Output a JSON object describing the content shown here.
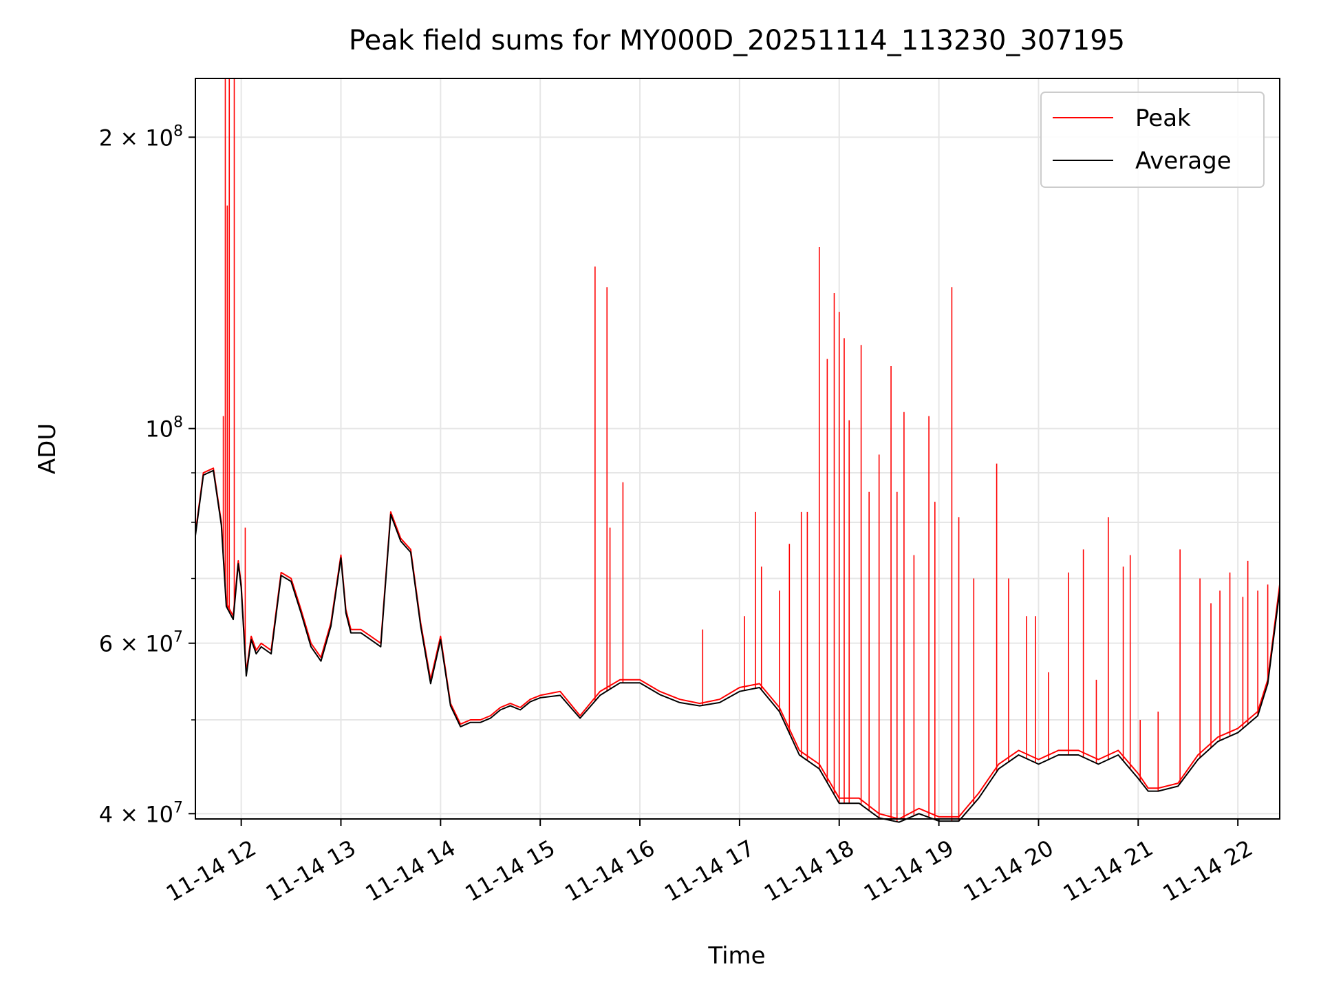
{
  "chart_data": {
    "type": "line",
    "title": "Peak field sums for MY000D_20251114_113230_307195",
    "xlabel": "Time",
    "ylabel": "ADU",
    "yscale": "log",
    "xlim": [
      11.54,
      22.42
    ],
    "ylim": [
      39500000,
      230000000
    ],
    "grid": true,
    "legend_position": "top-right",
    "x_ticks": [
      {
        "value": 12,
        "label": "11-14 12"
      },
      {
        "value": 13,
        "label": "11-14 13"
      },
      {
        "value": 14,
        "label": "11-14 14"
      },
      {
        "value": 15,
        "label": "11-14 15"
      },
      {
        "value": 16,
        "label": "11-14 16"
      },
      {
        "value": 17,
        "label": "11-14 17"
      },
      {
        "value": 18,
        "label": "11-14 18"
      },
      {
        "value": 19,
        "label": "11-14 19"
      },
      {
        "value": 20,
        "label": "11-14 20"
      },
      {
        "value": 21,
        "label": "11-14 21"
      },
      {
        "value": 22,
        "label": "11-14 22"
      }
    ],
    "y_ticks": [
      {
        "value": 40000000,
        "base": "4 × 10",
        "exp": "7"
      },
      {
        "value": 60000000,
        "base": "6 × 10",
        "exp": "7"
      },
      {
        "value": 100000000,
        "base": "10",
        "exp": "8"
      },
      {
        "value": 200000000,
        "base": "2 × 10",
        "exp": "8"
      }
    ],
    "y_minor_ticks": [
      50000000,
      70000000,
      80000000,
      90000000
    ],
    "series": [
      {
        "name": "Peak",
        "color": "#ff0000",
        "x": [
          11.54,
          11.62,
          11.72,
          11.8,
          11.85,
          11.92,
          11.97,
          12.0,
          12.05,
          12.1,
          12.15,
          12.2,
          12.3,
          12.4,
          12.5,
          12.6,
          12.7,
          12.8,
          12.9,
          13.0,
          13.05,
          13.1,
          13.2,
          13.3,
          13.4,
          13.5,
          13.6,
          13.7,
          13.8,
          13.9,
          14.0,
          14.1,
          14.2,
          14.3,
          14.4,
          14.5,
          14.6,
          14.7,
          14.8,
          14.9,
          15.0,
          15.2,
          15.4,
          15.6,
          15.8,
          16.0,
          16.2,
          16.4,
          16.6,
          16.8,
          17.0,
          17.2,
          17.4,
          17.6,
          17.8,
          18.0,
          18.2,
          18.4,
          18.6,
          18.8,
          19.0,
          19.2,
          19.4,
          19.6,
          19.8,
          20.0,
          20.2,
          20.4,
          20.6,
          20.8,
          21.0,
          21.1,
          21.2,
          21.4,
          21.6,
          21.8,
          22.0,
          22.2,
          22.3,
          22.42
        ],
        "y": [
          78000000,
          90000000,
          91000000,
          80000000,
          66000000,
          64000000,
          73000000,
          69000000,
          56000000,
          61000000,
          59000000,
          60000000,
          59000000,
          71000000,
          70000000,
          65000000,
          60000000,
          58000000,
          63000000,
          74000000,
          65000000,
          62000000,
          62000000,
          61000000,
          60000000,
          82000000,
          77000000,
          75000000,
          63000000,
          55000000,
          61000000,
          52000000,
          49500000,
          50000000,
          50000000,
          50500000,
          51500000,
          52000000,
          51500000,
          52500000,
          53000000,
          53500000,
          50500000,
          53500000,
          55000000,
          55000000,
          53500000,
          52500000,
          52000000,
          52500000,
          54000000,
          54500000,
          51500000,
          46500000,
          45000000,
          41500000,
          41500000,
          40000000,
          39500000,
          40500000,
          39700000,
          39700000,
          42000000,
          45000000,
          46500000,
          45500000,
          46500000,
          46500000,
          45500000,
          46500000,
          44000000,
          42500000,
          42500000,
          43000000,
          46000000,
          48000000,
          49000000,
          51000000,
          55000000,
          69000000
        ],
        "spikes": [
          {
            "x": 11.82,
            "y": 103000000
          },
          {
            "x": 11.84,
            "y": 230000000
          },
          {
            "x": 11.86,
            "y": 170000000
          },
          {
            "x": 11.88,
            "y": 230000000
          },
          {
            "x": 11.93,
            "y": 230000000
          },
          {
            "x": 12.04,
            "y": 79000000
          },
          {
            "x": 15.55,
            "y": 147000000
          },
          {
            "x": 15.67,
            "y": 140000000
          },
          {
            "x": 15.7,
            "y": 79000000
          },
          {
            "x": 15.83,
            "y": 88000000
          },
          {
            "x": 16.63,
            "y": 62000000
          },
          {
            "x": 17.05,
            "y": 64000000
          },
          {
            "x": 17.16,
            "y": 82000000
          },
          {
            "x": 17.22,
            "y": 72000000
          },
          {
            "x": 17.4,
            "y": 68000000
          },
          {
            "x": 17.5,
            "y": 76000000
          },
          {
            "x": 17.62,
            "y": 82000000
          },
          {
            "x": 17.68,
            "y": 82000000
          },
          {
            "x": 17.8,
            "y": 154000000
          },
          {
            "x": 17.88,
            "y": 118000000
          },
          {
            "x": 17.95,
            "y": 138000000
          },
          {
            "x": 18.0,
            "y": 132000000
          },
          {
            "x": 18.05,
            "y": 124000000
          },
          {
            "x": 18.1,
            "y": 102000000
          },
          {
            "x": 18.22,
            "y": 122000000
          },
          {
            "x": 18.3,
            "y": 86000000
          },
          {
            "x": 18.4,
            "y": 94000000
          },
          {
            "x": 18.52,
            "y": 116000000
          },
          {
            "x": 18.58,
            "y": 86000000
          },
          {
            "x": 18.65,
            "y": 104000000
          },
          {
            "x": 18.75,
            "y": 74000000
          },
          {
            "x": 18.9,
            "y": 103000000
          },
          {
            "x": 18.96,
            "y": 84000000
          },
          {
            "x": 19.13,
            "y": 140000000
          },
          {
            "x": 19.2,
            "y": 81000000
          },
          {
            "x": 19.35,
            "y": 70000000
          },
          {
            "x": 19.58,
            "y": 92000000
          },
          {
            "x": 19.7,
            "y": 70000000
          },
          {
            "x": 19.88,
            "y": 64000000
          },
          {
            "x": 19.97,
            "y": 64000000
          },
          {
            "x": 20.1,
            "y": 56000000
          },
          {
            "x": 20.3,
            "y": 71000000
          },
          {
            "x": 20.45,
            "y": 75000000
          },
          {
            "x": 20.58,
            "y": 55000000
          },
          {
            "x": 20.7,
            "y": 81000000
          },
          {
            "x": 20.85,
            "y": 72000000
          },
          {
            "x": 20.92,
            "y": 74000000
          },
          {
            "x": 21.02,
            "y": 50000000
          },
          {
            "x": 21.2,
            "y": 51000000
          },
          {
            "x": 21.42,
            "y": 75000000
          },
          {
            "x": 21.62,
            "y": 70000000
          },
          {
            "x": 21.73,
            "y": 66000000
          },
          {
            "x": 21.82,
            "y": 68000000
          },
          {
            "x": 21.92,
            "y": 71000000
          },
          {
            "x": 22.05,
            "y": 67000000
          },
          {
            "x": 22.1,
            "y": 73000000
          },
          {
            "x": 22.2,
            "y": 68000000
          },
          {
            "x": 22.3,
            "y": 69000000
          }
        ]
      },
      {
        "name": "Average",
        "color": "#000000",
        "x": [
          11.54,
          11.62,
          11.72,
          11.8,
          11.85,
          11.92,
          11.97,
          12.0,
          12.05,
          12.1,
          12.15,
          12.2,
          12.3,
          12.4,
          12.5,
          12.6,
          12.7,
          12.8,
          12.9,
          13.0,
          13.05,
          13.1,
          13.2,
          13.3,
          13.4,
          13.5,
          13.6,
          13.7,
          13.8,
          13.9,
          14.0,
          14.1,
          14.2,
          14.3,
          14.4,
          14.5,
          14.6,
          14.7,
          14.8,
          14.9,
          15.0,
          15.2,
          15.4,
          15.6,
          15.8,
          16.0,
          16.2,
          16.4,
          16.6,
          16.8,
          17.0,
          17.2,
          17.4,
          17.6,
          17.8,
          18.0,
          18.2,
          18.4,
          18.6,
          18.8,
          19.0,
          19.2,
          19.4,
          19.6,
          19.8,
          20.0,
          20.2,
          20.4,
          20.6,
          20.8,
          21.0,
          21.1,
          21.2,
          21.4,
          21.6,
          21.8,
          22.0,
          22.2,
          22.3,
          22.42
        ],
        "y": [
          77500000,
          89500000,
          90500000,
          79500000,
          65500000,
          63500000,
          72500000,
          68500000,
          55500000,
          60500000,
          58500000,
          59500000,
          58500000,
          70500000,
          69500000,
          64500000,
          59500000,
          57500000,
          62500000,
          73500000,
          64500000,
          61500000,
          61500000,
          60500000,
          59500000,
          81500000,
          76500000,
          74500000,
          62500000,
          54500000,
          60500000,
          51700000,
          49200000,
          49700000,
          49700000,
          50200000,
          51200000,
          51700000,
          51200000,
          52200000,
          52700000,
          53000000,
          50200000,
          53000000,
          54600000,
          54600000,
          53100000,
          52100000,
          51700000,
          52100000,
          53500000,
          54000000,
          51000000,
          46000000,
          44500000,
          41000000,
          41000000,
          39600000,
          39200000,
          40000000,
          39300000,
          39300000,
          41500000,
          44500000,
          46000000,
          45000000,
          46000000,
          46000000,
          45000000,
          46000000,
          43500000,
          42200000,
          42200000,
          42700000,
          45500000,
          47500000,
          48500000,
          50500000,
          54500000,
          68000000
        ]
      }
    ]
  }
}
